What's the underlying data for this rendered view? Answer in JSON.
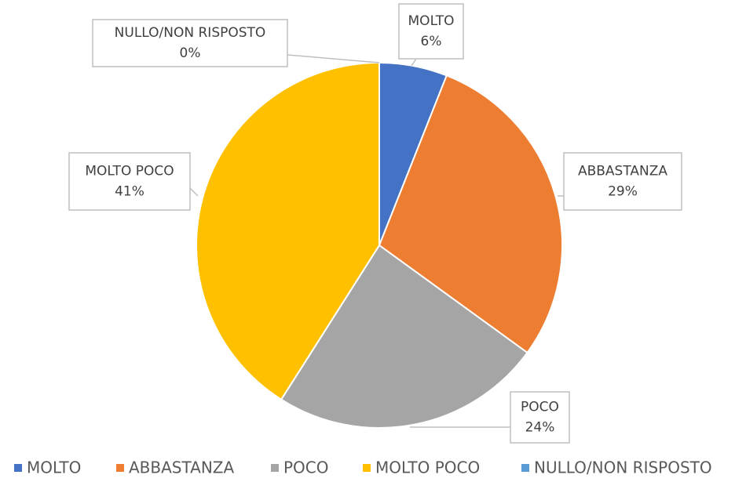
{
  "chart_data": {
    "type": "pie",
    "categories": [
      "MOLTO",
      "ABBASTANZA",
      "POCO",
      "MOLTO POCO",
      "NULLO/NON RISPOSTO"
    ],
    "values": [
      6,
      29,
      24,
      41,
      0
    ],
    "value_labels": [
      "6%",
      "29%",
      "24%",
      "41%",
      "0%"
    ],
    "colors": [
      "#4472c4",
      "#ed7d31",
      "#a5a5a5",
      "#ffc000",
      "#5b9bd5"
    ],
    "legend": "bottom"
  }
}
